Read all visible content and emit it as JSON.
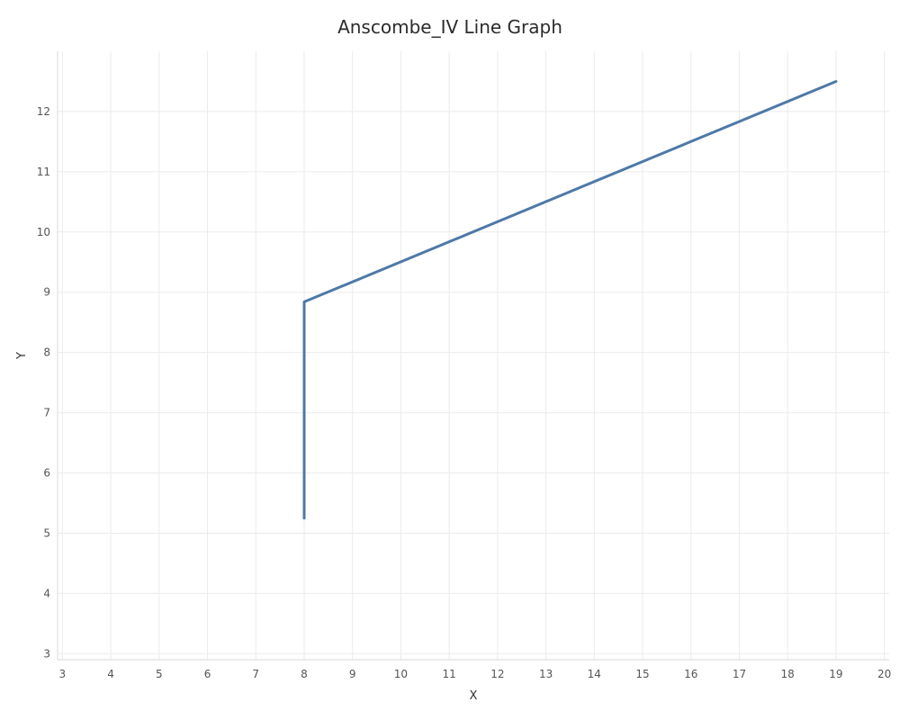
{
  "chart_data": {
    "type": "line",
    "title": "Anscombe_IV Line Graph",
    "xlabel": "X",
    "ylabel": "Y",
    "xlim": [
      3,
      20
    ],
    "ylim": [
      3,
      12
    ],
    "x_ticks": [
      3,
      4,
      5,
      6,
      7,
      8,
      9,
      10,
      11,
      12,
      13,
      14,
      15,
      16,
      17,
      18,
      19,
      20
    ],
    "y_ticks": [
      3,
      4,
      5,
      6,
      7,
      8,
      9,
      10,
      11,
      12
    ],
    "grid": true,
    "series": [
      {
        "color": "#4e79a7",
        "points": [
          {
            "x": 8,
            "y": 5.25
          },
          {
            "x": 8,
            "y": 8.84
          },
          {
            "x": 19,
            "y": 12.5
          }
        ]
      }
    ]
  }
}
